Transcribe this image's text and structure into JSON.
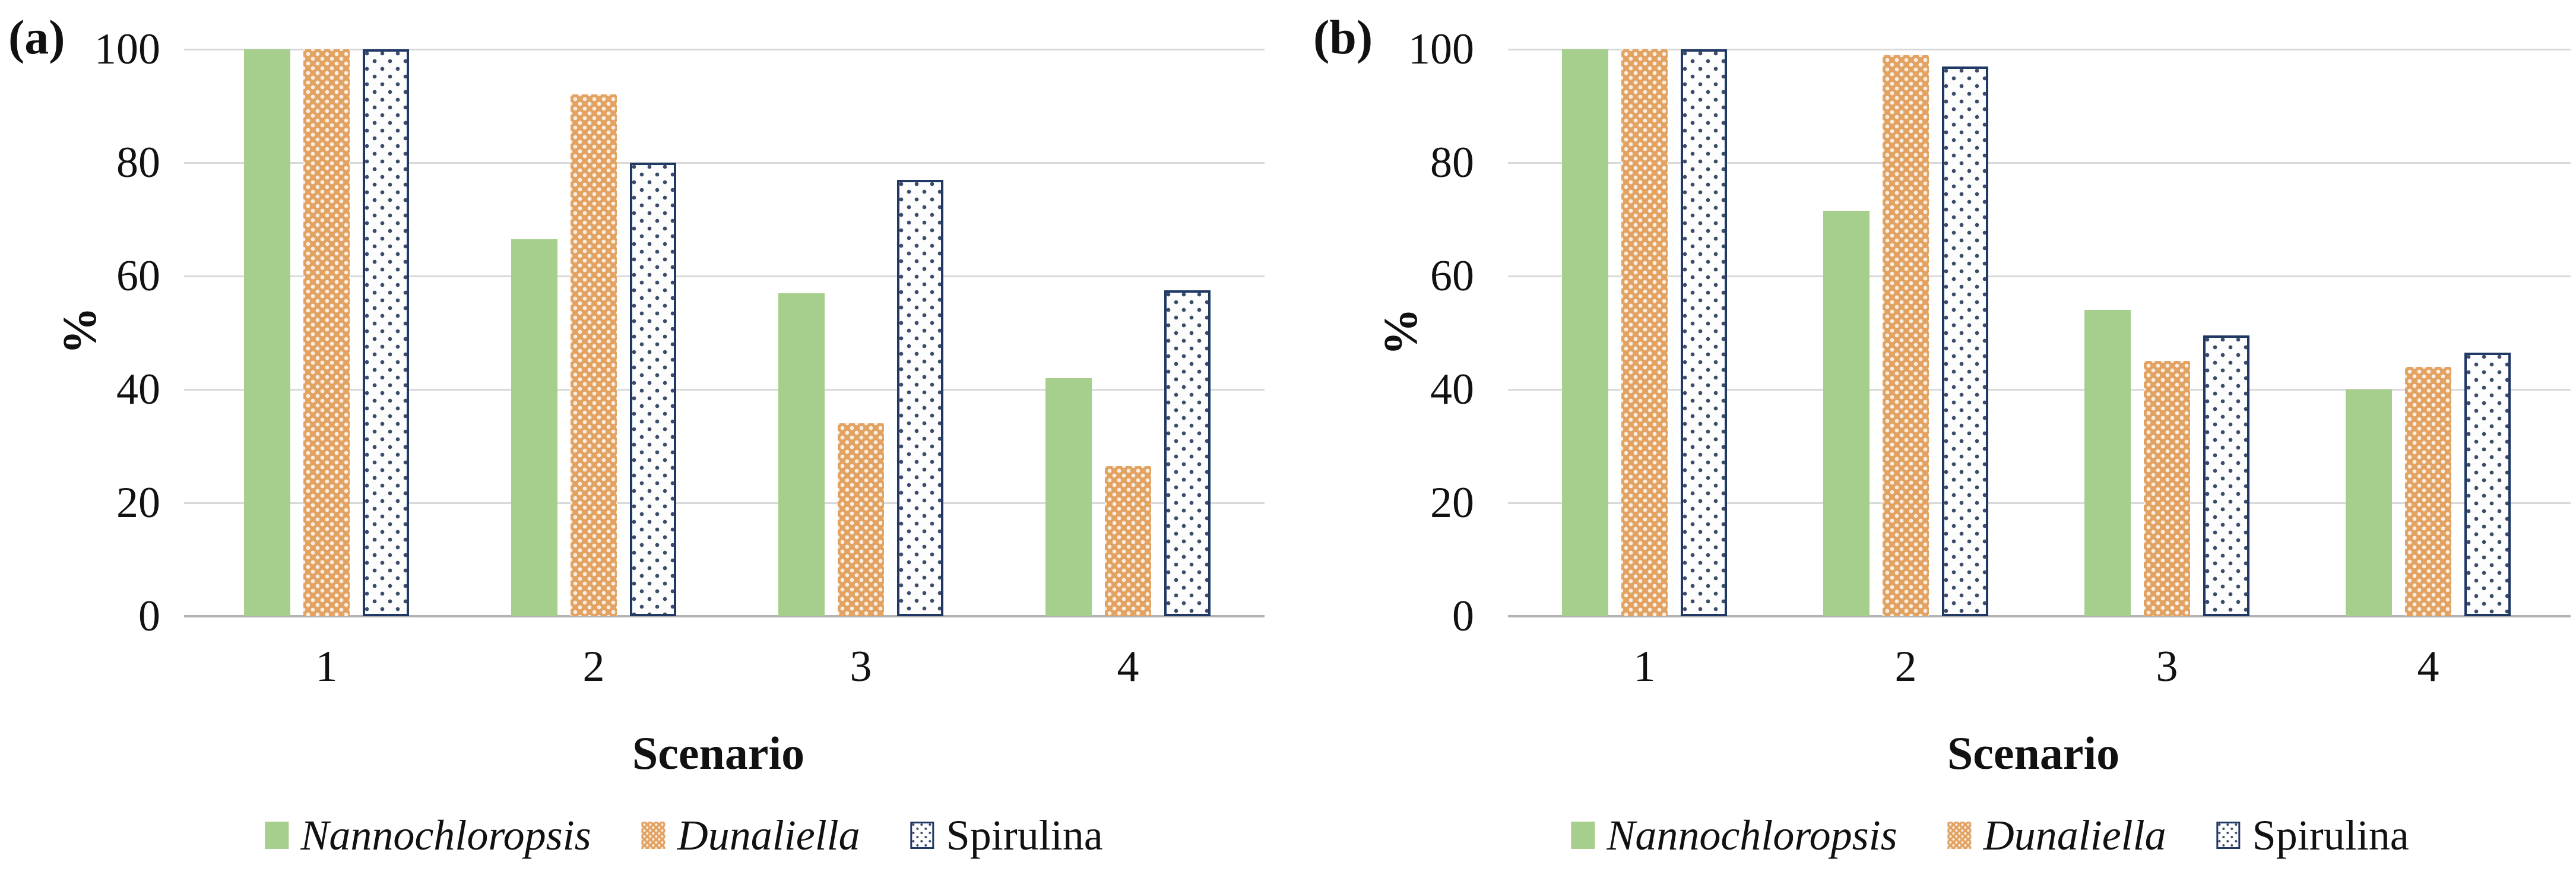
{
  "colors": {
    "nannochloropsis_green": "#a6ce8c",
    "dunaliella_orange": "#e2a262",
    "spirulina_navy": "#1f3864",
    "gridline_gray": "#d9d9d9",
    "axisline_gray": "#b3b3b3",
    "text": "#111111"
  },
  "chart_data": [
    {
      "type": "bar",
      "panel_label": "(a)",
      "xlabel": "Scenario",
      "ylabel": "%",
      "ylim": [
        0,
        100
      ],
      "yticks": [
        0,
        20,
        40,
        60,
        80,
        100
      ],
      "categories": [
        "1",
        "2",
        "3",
        "4"
      ],
      "grid": true,
      "legend_position": "bottom",
      "series": [
        {
          "name": "Nannochloropsis",
          "italic_label": true,
          "pattern": "solid-green",
          "values": [
            100,
            66.5,
            57,
            42
          ]
        },
        {
          "name": "Dunaliella",
          "italic_label": true,
          "pattern": "orange-diamond-dots",
          "values": [
            100,
            92,
            34,
            26.5
          ]
        },
        {
          "name": "Spirulina",
          "italic_label": false,
          "pattern": "white-navy-dots",
          "values": [
            100,
            80,
            77,
            57.5
          ]
        }
      ]
    },
    {
      "type": "bar",
      "panel_label": "(b)",
      "xlabel": "Scenario",
      "ylabel": "%",
      "ylim": [
        0,
        100
      ],
      "yticks": [
        0,
        20,
        40,
        60,
        80,
        100
      ],
      "categories": [
        "1",
        "2",
        "3",
        "4"
      ],
      "grid": true,
      "legend_position": "bottom",
      "series": [
        {
          "name": "Nannochloropsis",
          "italic_label": true,
          "pattern": "solid-green",
          "values": [
            100,
            71.5,
            54,
            40
          ]
        },
        {
          "name": "Dunaliella",
          "italic_label": true,
          "pattern": "orange-diamond-dots",
          "values": [
            100,
            99,
            45,
            44
          ]
        },
        {
          "name": "Spirulina",
          "italic_label": false,
          "pattern": "white-navy-dots",
          "values": [
            100,
            97,
            49.5,
            46.5
          ]
        }
      ]
    }
  ]
}
